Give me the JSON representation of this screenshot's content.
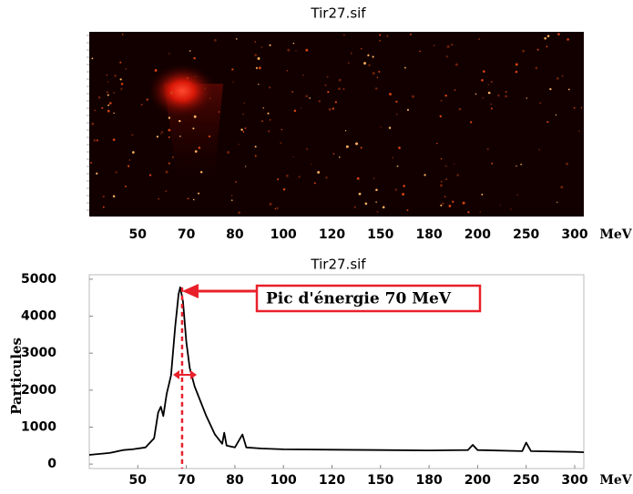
{
  "chart_data": [
    {
      "type": "image",
      "title": "Tir27.sif",
      "xlim": [
        40,
        315
      ],
      "xticks": [
        50,
        70,
        80,
        100,
        120,
        150,
        180,
        200,
        250,
        300
      ],
      "x_unit": "MeV"
    },
    {
      "type": "line",
      "title": "Tir27.sif",
      "y_label": "Particules",
      "x_unit": "MeV",
      "annotation": "Pic d'énergie 70 MeV",
      "color": "#000000",
      "annotation_color": "#e8202a",
      "xlim": [
        40,
        315
      ],
      "xticks": [
        50,
        70,
        80,
        100,
        120,
        150,
        180,
        200,
        250,
        300
      ],
      "ylim": [
        -120,
        5120
      ],
      "yticks": [
        0,
        1000,
        2000,
        3000,
        4000,
        5000
      ],
      "x": [
        40,
        44.2,
        47,
        48.9,
        53.2,
        56.7,
        58.4,
        59.5,
        60.5,
        61.9,
        63.7,
        65.4,
        66.8,
        67.5,
        68.6,
        70,
        70.7,
        71.7,
        72.6,
        74.1,
        75.9,
        77.4,
        77.8,
        78.3,
        80,
        83.1,
        84.7,
        91,
        100,
        120,
        150,
        180,
        196,
        198,
        200,
        246,
        250,
        255,
        300,
        315
      ],
      "values": [
        250,
        300,
        380,
        400,
        450,
        700,
        1400,
        1550,
        1300,
        1900,
        2400,
        3700,
        4600,
        4780,
        4400,
        3300,
        2600,
        2100,
        1800,
        1300,
        800,
        550,
        850,
        500,
        450,
        800,
        450,
        420,
        400,
        390,
        380,
        370,
        380,
        520,
        380,
        350,
        580,
        350,
        330,
        320
      ]
    }
  ]
}
